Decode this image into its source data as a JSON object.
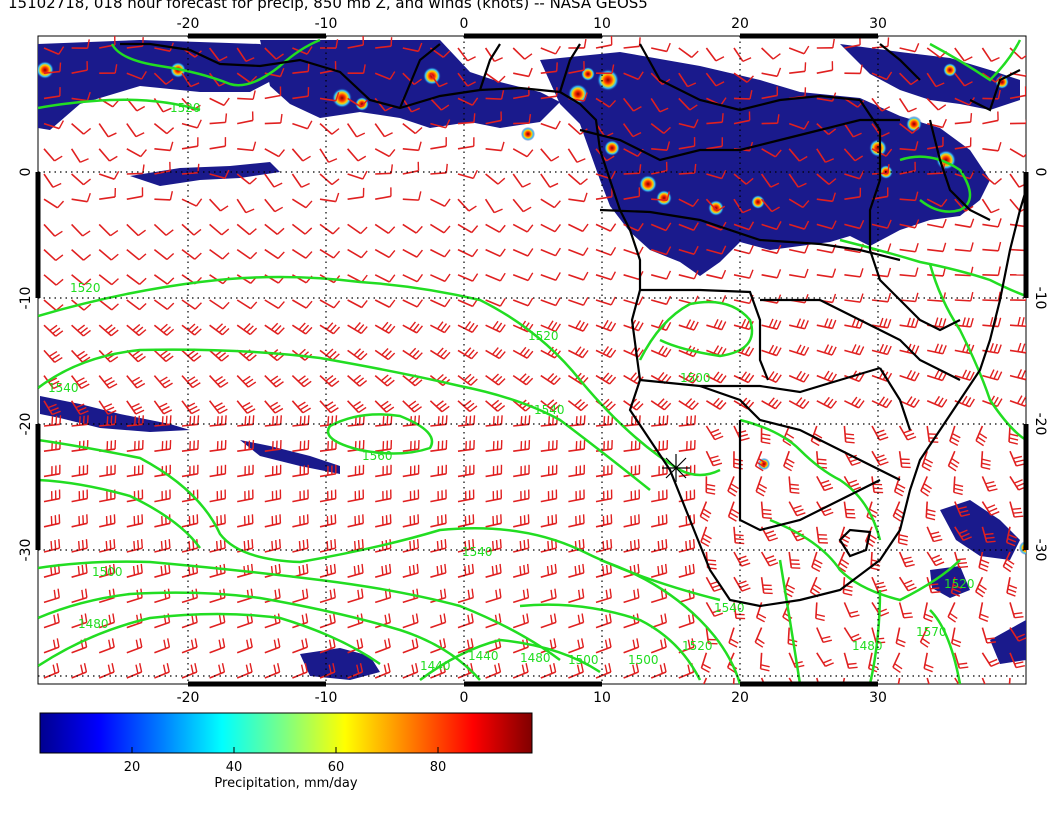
{
  "title": "15102718, 018 hour forecast for precip, 850 mb Z, and winds (knots) -- NASA GEOS5",
  "map": {
    "lon_ticks": [
      "-20",
      "-10",
      "0",
      "10",
      "20",
      "30"
    ],
    "lat_ticks": [
      "0",
      "-10",
      "-20",
      "-30"
    ],
    "contour_labels": [
      "1520",
      "1520",
      "1540",
      "1520",
      "1560",
      "1540",
      "1540",
      "1500",
      "1480",
      "1440",
      "1440",
      "1480",
      "1500",
      "1500",
      "1520",
      "1500",
      "1540",
      "1520",
      "1480",
      "1570"
    ],
    "colors": {
      "precip_low": "#1a1a8c",
      "precip_high": "#8b0000",
      "contour": "#22dd22",
      "wind_barb": "#e02020",
      "coastline": "#000000"
    }
  },
  "colorbar": {
    "title": "Precipitation, mm/day",
    "ticks": [
      "20",
      "40",
      "60",
      "80"
    ],
    "colormap": [
      "#00008f",
      "#0000ff",
      "#0080ff",
      "#00ffff",
      "#80ff80",
      "#ffff00",
      "#ff8000",
      "#ff0000",
      "#800000"
    ]
  }
}
